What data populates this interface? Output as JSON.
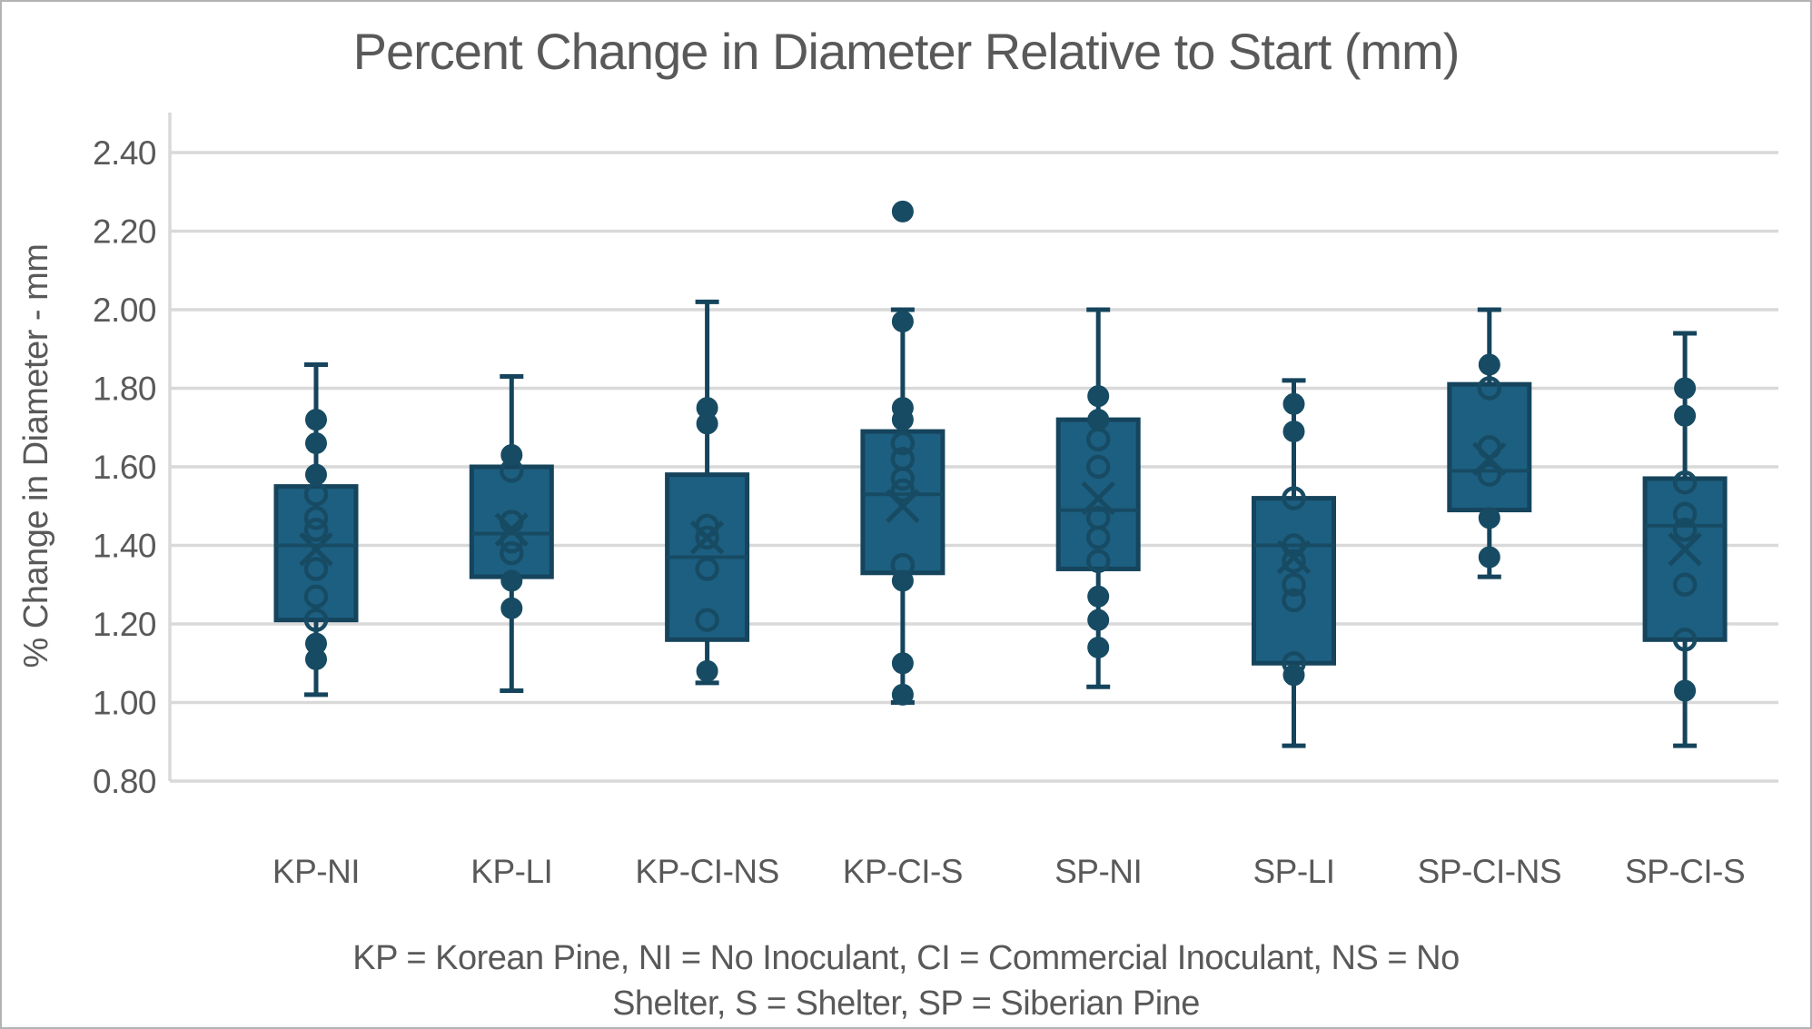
{
  "title": "Percent Change in Diameter Relative to Start (mm)",
  "y_axis": {
    "label": "% Change in Diameter - mm"
  },
  "footnote": {
    "line1": "KP = Korean Pine, NI = No Inoculant, CI = Commercial Inoculant, NS = No",
    "line2": "Shelter, S = Shelter, SP = Siberian Pine"
  },
  "colors": {
    "box_fill": "#1d5f80",
    "box_stroke": "#15445c",
    "marker": "#174b63",
    "median": "#174b63",
    "gridline": "#d9d9d9",
    "axis_line": "#d9d9d9",
    "text": "#595959"
  },
  "chart_data": {
    "type": "boxplot",
    "title": "Percent Change in Diameter Relative to Start (mm)",
    "xlabel": "",
    "ylabel": "% Change in Diameter - mm",
    "ylim": [
      0.8,
      2.4
    ],
    "y_tick_step": 0.2,
    "grid": "horizontal",
    "legend": "none",
    "y_ticks": [
      {
        "v": 0.8,
        "label": "0.80"
      },
      {
        "v": 1.0,
        "label": "1.00"
      },
      {
        "v": 1.2,
        "label": "1.20"
      },
      {
        "v": 1.4,
        "label": "1.40"
      },
      {
        "v": 1.6,
        "label": "1.60"
      },
      {
        "v": 1.8,
        "label": "1.80"
      },
      {
        "v": 2.0,
        "label": "2.00"
      },
      {
        "v": 2.2,
        "label": "2.20"
      },
      {
        "v": 2.4,
        "label": "2.40"
      }
    ],
    "categories": [
      "KP-NI",
      "KP-LI",
      "KP-CI-NS",
      "KP-CI-S",
      "SP-NI",
      "SP-LI",
      "SP-CI-NS",
      "SP-CI-S"
    ],
    "series": [
      {
        "category": "KP-NI",
        "whisker_low": 1.02,
        "q1": 1.21,
        "median": 1.4,
        "q3": 1.55,
        "whisker_high": 1.86,
        "mean": 1.39,
        "points_solid": [
          1.72,
          1.66,
          1.58,
          1.15,
          1.11
        ],
        "points_open": [
          1.53,
          1.47,
          1.44,
          1.34,
          1.27,
          1.21
        ]
      },
      {
        "category": "KP-LI",
        "whisker_low": 1.03,
        "q1": 1.32,
        "median": 1.43,
        "q3": 1.6,
        "whisker_high": 1.83,
        "mean": 1.44,
        "points_solid": [
          1.63,
          1.31,
          1.24
        ],
        "points_open": [
          1.59,
          1.46,
          1.41,
          1.38
        ]
      },
      {
        "category": "KP-CI-NS",
        "whisker_low": 1.05,
        "q1": 1.16,
        "median": 1.37,
        "q3": 1.58,
        "whisker_high": 2.02,
        "mean": 1.42,
        "points_solid": [
          1.75,
          1.71,
          1.08
        ],
        "points_open": [
          1.45,
          1.42,
          1.34,
          1.21
        ]
      },
      {
        "category": "KP-CI-S",
        "whisker_low": 1.0,
        "q1": 1.33,
        "median": 1.53,
        "q3": 1.69,
        "whisker_high": 2.0,
        "mean": 1.5,
        "points_solid": [
          2.25,
          1.97,
          1.75,
          1.72,
          1.31,
          1.1,
          1.02
        ],
        "points_open": [
          1.66,
          1.62,
          1.57,
          1.54,
          1.35
        ]
      },
      {
        "category": "SP-NI",
        "whisker_low": 1.04,
        "q1": 1.34,
        "median": 1.49,
        "q3": 1.72,
        "whisker_high": 2.0,
        "mean": 1.52,
        "points_solid": [
          1.78,
          1.72,
          1.27,
          1.21,
          1.14
        ],
        "points_open": [
          1.67,
          1.6,
          1.47,
          1.42,
          1.36
        ]
      },
      {
        "category": "SP-LI",
        "whisker_low": 0.89,
        "q1": 1.1,
        "median": 1.4,
        "q3": 1.52,
        "whisker_high": 1.82,
        "mean": 1.37,
        "points_solid": [
          1.76,
          1.69,
          1.07
        ],
        "points_open": [
          1.52,
          1.4,
          1.36,
          1.3,
          1.26,
          1.1
        ]
      },
      {
        "category": "SP-CI-NS",
        "whisker_low": 1.32,
        "q1": 1.49,
        "median": 1.59,
        "q3": 1.81,
        "whisker_high": 2.0,
        "mean": 1.62,
        "points_solid": [
          1.86,
          1.47,
          1.37
        ],
        "points_open": [
          1.8,
          1.65,
          1.58
        ]
      },
      {
        "category": "SP-CI-S",
        "whisker_low": 0.89,
        "q1": 1.16,
        "median": 1.45,
        "q3": 1.57,
        "whisker_high": 1.94,
        "mean": 1.39,
        "points_solid": [
          1.8,
          1.73,
          1.03
        ],
        "points_open": [
          1.56,
          1.48,
          1.44,
          1.3,
          1.16
        ]
      }
    ]
  }
}
